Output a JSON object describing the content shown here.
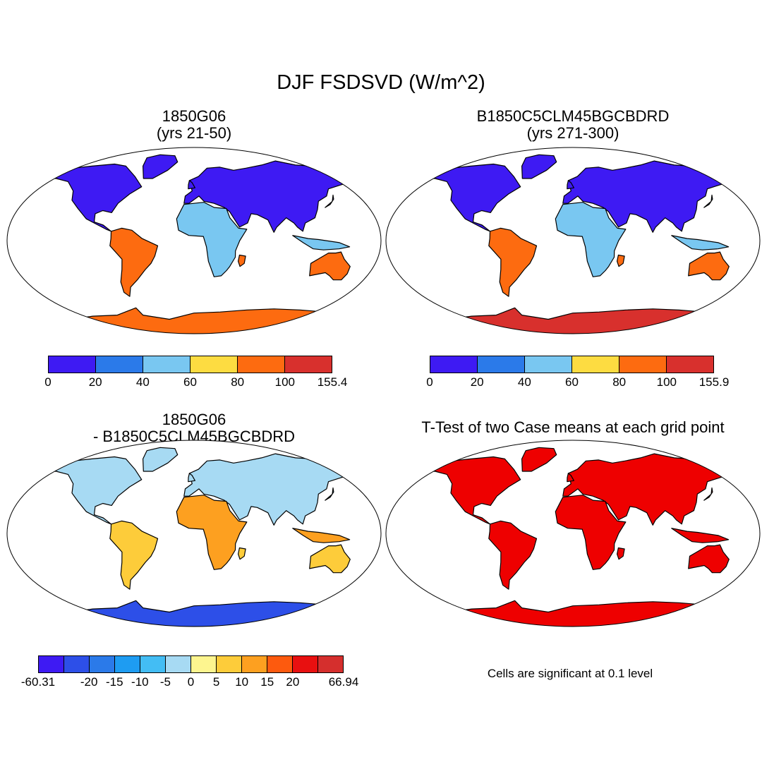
{
  "figure": {
    "title": "DJF FSDSVD (W/m^2)",
    "note": "Cells are significant at 0.1 level"
  },
  "panels": [
    {
      "title_lines": [
        "1850G06",
        "(yrs 21-50)"
      ],
      "scheme": "case1"
    },
    {
      "title_lines": [
        "B1850C5CLM45BGCBDRD",
        "(yrs 271-300)"
      ],
      "scheme": "case2"
    },
    {
      "title_lines": [
        "1850G06",
        "- B1850C5CLM45BGCBDRD"
      ],
      "scheme": "diff"
    },
    {
      "title_lines": [
        "T-Test of two Case means at each grid point"
      ],
      "scheme": "ttest"
    }
  ],
  "colorbars": {
    "case1": {
      "colors": [
        "#3e1af3",
        "#2b7ae9",
        "#79c7f1",
        "#fddc41",
        "#fd6b10",
        "#d8302d"
      ],
      "labels": [
        "0",
        "20",
        "40",
        "60",
        "80",
        "100",
        "155.4"
      ]
    },
    "case2": {
      "colors": [
        "#3e1af3",
        "#2b7ae9",
        "#79c7f1",
        "#fddc41",
        "#fd6b10",
        "#d8302d"
      ],
      "labels": [
        "0",
        "20",
        "40",
        "60",
        "80",
        "100",
        "155.9"
      ]
    },
    "diff": {
      "colors": [
        "#3e1af3",
        "#2d4fe8",
        "#2b7ae9",
        "#1e9cf2",
        "#43bdf4",
        "#a7daf3",
        "#fdf58f",
        "#fdcc3a",
        "#fda020",
        "#fd5a0e",
        "#e81010",
        "#d52f2d"
      ],
      "labels": [
        "-60.31",
        "",
        "-20",
        "-15",
        "-10",
        "-5",
        "0",
        "5",
        "10",
        "15",
        "20",
        "",
        "66.94"
      ]
    }
  },
  "map_colors": {
    "ocean": "#ffffff",
    "significant": "#ee0000",
    "coast": "#000000"
  }
}
